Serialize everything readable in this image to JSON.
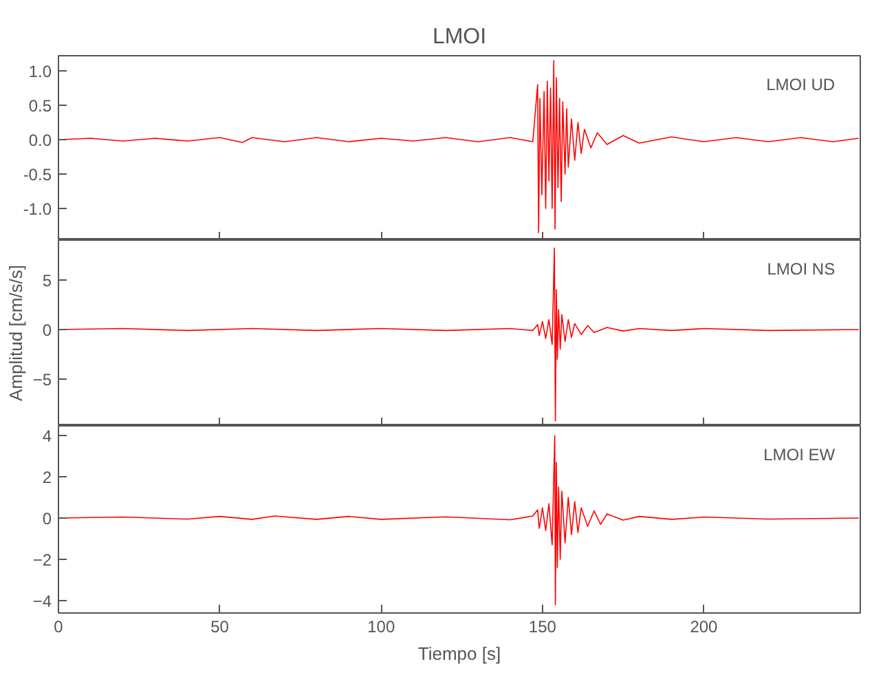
{
  "chart_data": [
    {
      "type": "line",
      "title": "LMOI",
      "annotations": [
        "LMOI   UD"
      ],
      "tick_labels": "y",
      "xlim": [
        0,
        248.5
      ],
      "xticks": [
        0,
        50,
        100,
        150,
        200
      ],
      "ylim": [
        -1.46,
        1.22
      ],
      "yticks": [
        {
          "value": -1.0,
          "label": "-1.0"
        },
        {
          "value": -0.5,
          "label": "-0.5"
        },
        {
          "value": 0,
          "label": "0.0"
        },
        {
          "value": 0.5,
          "label": "0.5"
        },
        {
          "value": 1.0,
          "label": "1.0"
        }
      ],
      "series": [
        {
          "color": "#ff0000",
          "x": [
            0,
            10,
            20,
            30,
            40,
            50,
            57,
            60,
            70,
            80,
            90,
            100,
            110,
            120,
            130,
            140,
            147,
            148.5,
            148.8,
            149.2,
            149.8,
            150.5,
            151,
            151.5,
            152,
            152.5,
            153,
            153.5,
            153.9,
            154.3,
            154.8,
            155.3,
            155.8,
            156.3,
            157,
            157.5,
            158,
            159,
            160,
            161,
            162,
            163,
            165,
            167,
            170,
            175,
            180,
            190,
            200,
            210,
            220,
            230,
            240,
            248
          ],
          "values": [
            0,
            0.02,
            -0.02,
            0.02,
            -0.02,
            0.03,
            -0.04,
            0.03,
            -0.03,
            0.03,
            -0.03,
            0.02,
            -0.02,
            0.03,
            -0.03,
            0.03,
            -0.03,
            0.8,
            -1.35,
            0.6,
            -0.8,
            0.7,
            -1.0,
            0.85,
            -0.6,
            0.75,
            -1.0,
            1.15,
            -1.3,
            0.9,
            -0.7,
            0.6,
            -0.9,
            0.55,
            -0.5,
            0.45,
            -0.4,
            0.3,
            -0.3,
            0.25,
            -0.2,
            0.15,
            -0.12,
            0.1,
            -0.07,
            0.06,
            -0.05,
            0.04,
            -0.03,
            0.03,
            -0.03,
            0.03,
            -0.03,
            0.02
          ]
        }
      ]
    },
    {
      "type": "line",
      "ylabel": "Amplitud [cm/s/s]",
      "annotations": [
        "LMOI   NS"
      ],
      "tick_labels": "y",
      "xlim": [
        0,
        248.5
      ],
      "xticks": [
        0,
        50,
        100,
        150,
        200
      ],
      "ylim": [
        -9.7,
        9.0
      ],
      "yticks": [
        -5,
        0,
        5
      ],
      "series": [
        {
          "color": "#ff0000",
          "x": [
            0,
            20,
            40,
            60,
            80,
            100,
            120,
            140,
            147,
            148.5,
            149,
            150,
            151,
            152,
            153,
            153.7,
            154,
            154.3,
            154.6,
            155,
            155.5,
            156,
            157,
            158,
            159,
            160,
            162,
            164,
            166,
            170,
            175,
            180,
            190,
            200,
            220,
            248
          ],
          "values": [
            0,
            0.1,
            -0.1,
            0.1,
            -0.1,
            0.1,
            -0.1,
            0.1,
            -0.1,
            0.5,
            -0.6,
            0.8,
            -0.9,
            1.0,
            -1.5,
            8.2,
            -9.2,
            4.0,
            -3.0,
            2.0,
            -2.0,
            1.5,
            -1.2,
            1.0,
            -0.8,
            0.6,
            -0.5,
            0.4,
            -0.3,
            0.2,
            -0.15,
            0.1,
            -0.1,
            0.1,
            -0.1,
            0
          ]
        }
      ]
    },
    {
      "type": "line",
      "xlabel": "Tiempo [s]",
      "annotations": [
        "LMOI   EW"
      ],
      "xlim": [
        0,
        248.5
      ],
      "xticks": [
        0,
        50,
        100,
        150,
        200
      ],
      "ylim": [
        -4.6,
        4.47
      ],
      "yticks": [
        -4,
        -2,
        0,
        2,
        4
      ],
      "series": [
        {
          "color": "#ff0000",
          "x": [
            0,
            20,
            40,
            50,
            60,
            67,
            80,
            90,
            100,
            120,
            140,
            147,
            148.5,
            149,
            150,
            151,
            152,
            153,
            153.5,
            153.8,
            154,
            154.3,
            154.6,
            155,
            155.5,
            156,
            157,
            158,
            159,
            160,
            161,
            162,
            164,
            166,
            168,
            170,
            175,
            180,
            190,
            200,
            220,
            248
          ],
          "values": [
            0,
            0.05,
            -0.05,
            0.08,
            -0.06,
            0.1,
            -0.06,
            0.08,
            -0.06,
            0.06,
            -0.08,
            0.1,
            0.4,
            -0.5,
            0.5,
            -0.6,
            0.7,
            -1.3,
            2.0,
            4.0,
            -4.2,
            2.7,
            -2.4,
            1.5,
            -2.0,
            1.3,
            -1.2,
            1.0,
            -0.8,
            0.8,
            -0.7,
            0.5,
            -0.4,
            0.35,
            -0.3,
            0.2,
            -0.1,
            0.08,
            -0.06,
            0.05,
            -0.05,
            0
          ]
        }
      ]
    }
  ]
}
